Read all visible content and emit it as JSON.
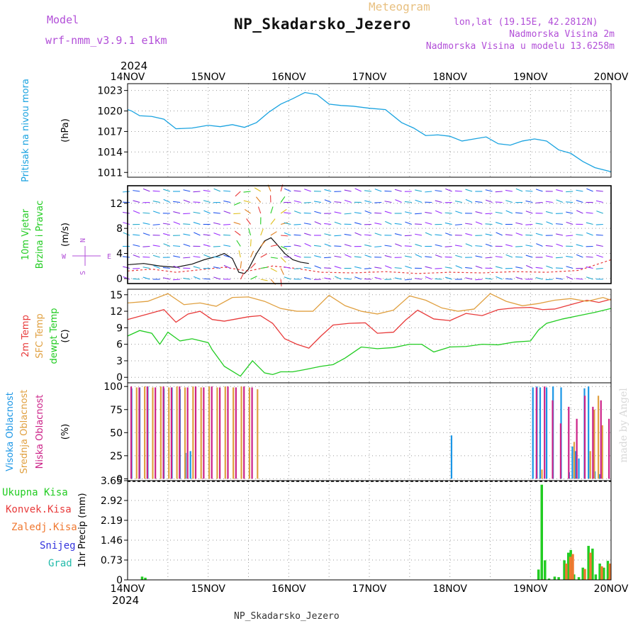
{
  "header": {
    "model_label": "Model",
    "model_name": "wrf-nmm_v3.9.1 e1km",
    "meteogram_label": "Meteogram",
    "station": "NP_Skadarsko_Jezero",
    "lonlat": "lon,lat (19.15E, 42.2812N)",
    "elevation": "Nadmorska Visina 2m",
    "model_elevation": "Nadmorska Visina u modelu 13.6258m",
    "footer_station": "NP_Skadarsko_Jezero",
    "credit": "made by Angel",
    "year": "2024"
  },
  "colors": {
    "pressure": "#1aa3e0",
    "temp2m": "#e83a3a",
    "sfc_temp": "#e0a040",
    "dewpoint": "#22cc22",
    "high_cloud": "#1a96e6",
    "mid_cloud": "#e0a040",
    "low_cloud": "#cc2288",
    "total_precip": "#22cc22",
    "conv_precip": "#e83a3a",
    "frozen_precip": "#f07830",
    "snow": "#3333dd",
    "hail": "#22bbaa"
  },
  "chart_data": {
    "type": "line",
    "x_labels": [
      "14NOV",
      "15NOV",
      "16NOV",
      "17NOV",
      "18NOV",
      "19NOV",
      "20NOV"
    ],
    "panels": [
      {
        "id": "pressure",
        "ylabel": [
          "Pritisak na nivou mora",
          "(hPa)"
        ],
        "yticks": [
          1011,
          1014,
          1017,
          1020,
          1023
        ],
        "ylim": [
          1010.3,
          1024.0
        ],
        "series": [
          {
            "name": "Pritisak na nivou mora",
            "x": [
              0,
              0.05,
              0.15,
              0.3,
              0.45,
              0.6,
              0.8,
              1.0,
              1.15,
              1.3,
              1.45,
              1.6,
              1.75,
              1.9,
              2.05,
              2.2,
              2.35,
              2.5,
              2.65,
              2.8,
              3.0,
              3.2,
              3.4,
              3.55,
              3.7,
              3.85,
              4.0,
              4.15,
              4.3,
              4.45,
              4.6,
              4.75,
              4.9,
              5.05,
              5.2,
              5.35,
              5.5,
              5.65,
              5.8,
              6.0
            ],
            "y": [
              1020.2,
              1020.0,
              1019.3,
              1019.2,
              1018.8,
              1017.4,
              1017.5,
              1017.9,
              1017.7,
              1018.0,
              1017.6,
              1018.3,
              1019.8,
              1021.0,
              1021.8,
              1022.7,
              1022.4,
              1021.0,
              1020.8,
              1020.7,
              1020.4,
              1020.2,
              1018.3,
              1017.5,
              1016.4,
              1016.5,
              1016.3,
              1015.6,
              1015.9,
              1016.2,
              1015.2,
              1015.0,
              1015.6,
              1015.9,
              1015.6,
              1014.3,
              1013.8,
              1012.6,
              1011.7,
              1011.1
            ]
          }
        ]
      },
      {
        "id": "wind",
        "ylabel": [
          "10m Vjetar",
          "Brzina i Pravac",
          "(m/s)"
        ],
        "yticks": [
          0,
          4,
          8,
          12
        ],
        "ylim": [
          -0.8,
          14.8
        ],
        "compass": {
          "north": "N",
          "south": "S",
          "west": "W",
          "east": "E"
        },
        "series": [
          {
            "name": "speed",
            "x": [
              0,
              0.2,
              0.4,
              0.6,
              0.8,
              0.95,
              1.1,
              1.2,
              1.3,
              1.38,
              1.45,
              1.5,
              1.6,
              1.7,
              1.78,
              1.85,
              1.95,
              2.05,
              2.15,
              2.25
            ],
            "y": [
              2.2,
              2.4,
              2.0,
              1.8,
              2.3,
              3.0,
              3.5,
              4.0,
              3.2,
              1.0,
              0.8,
              1.5,
              4.0,
              6.0,
              6.5,
              5.5,
              4.0,
              3.0,
              2.6,
              2.4
            ]
          },
          {
            "name": "gust",
            "x": [
              0,
              0.3,
              0.6,
              0.9,
              1.2,
              1.5,
              1.8,
              2.1,
              2.4,
              2.8,
              3.2,
              3.6,
              4.0,
              4.4,
              4.8,
              5.2,
              5.6,
              6.0
            ],
            "y": [
              1.2,
              1.5,
              1.0,
              1.4,
              1.8,
              1.2,
              2.0,
              1.6,
              1.0,
              0.9,
              1.1,
              0.8,
              1.0,
              0.9,
              1.1,
              1.0,
              1.3,
              3.0
            ]
          }
        ]
      },
      {
        "id": "temperature",
        "ylabel": [
          "2m Temp",
          "SFC Temp",
          "dewpt Temp",
          "(C)"
        ],
        "yticks": [
          0,
          3,
          6,
          9,
          12,
          15
        ],
        "ylim": [
          -1.0,
          16.0
        ],
        "series": [
          {
            "name": "2m Temp",
            "x": [
              0,
              0.25,
              0.45,
              0.6,
              0.75,
              0.9,
              1.05,
              1.2,
              1.35,
              1.5,
              1.65,
              1.8,
              1.95,
              2.1,
              2.25,
              2.4,
              2.55,
              2.75,
              2.95,
              3.1,
              3.3,
              3.45,
              3.6,
              3.8,
              4.0,
              4.2,
              4.4,
              4.6,
              4.8,
              5.0,
              5.15,
              5.3,
              5.5,
              5.7,
              5.85,
              6.0
            ],
            "y": [
              10.5,
              11.5,
              12.3,
              10.0,
              11.5,
              12.0,
              10.5,
              10.2,
              10.6,
              11.0,
              11.2,
              9.8,
              7.0,
              6.0,
              5.3,
              7.5,
              9.5,
              9.8,
              9.9,
              8.0,
              8.2,
              10.4,
              12.2,
              10.6,
              10.3,
              11.6,
              11.2,
              12.3,
              12.6,
              12.7,
              12.3,
              12.4,
              13.2,
              14.0,
              13.6,
              14.2
            ]
          },
          {
            "name": "SFC Temp",
            "x": [
              0,
              0.25,
              0.5,
              0.7,
              0.9,
              1.1,
              1.3,
              1.5,
              1.7,
              1.9,
              2.1,
              2.3,
              2.5,
              2.7,
              2.9,
              3.1,
              3.3,
              3.5,
              3.7,
              3.9,
              4.1,
              4.3,
              4.5,
              4.7,
              4.9,
              5.1,
              5.3,
              5.5,
              5.7,
              5.9,
              6.0
            ],
            "y": [
              13.5,
              13.8,
              15.2,
              13.2,
              13.5,
              12.9,
              14.5,
              14.6,
              13.8,
              12.5,
              12.0,
              12.0,
              14.9,
              13.0,
              12.0,
              11.5,
              12.2,
              14.8,
              14.0,
              12.6,
              12.0,
              12.4,
              15.2,
              13.8,
              13.0,
              13.4,
              14.0,
              14.3,
              13.8,
              14.5,
              14.0
            ]
          },
          {
            "name": "dewpt Temp",
            "x": [
              0,
              0.15,
              0.3,
              0.4,
              0.5,
              0.65,
              0.8,
              1.0,
              1.05,
              1.2,
              1.4,
              1.55,
              1.7,
              1.8,
              1.9,
              2.05,
              2.2,
              2.4,
              2.55,
              2.7,
              2.9,
              3.1,
              3.3,
              3.5,
              3.65,
              3.8,
              4.0,
              4.2,
              4.4,
              4.6,
              4.8,
              5.0,
              5.1,
              5.2,
              5.4,
              5.6,
              5.8,
              6.0
            ],
            "y": [
              7.5,
              8.5,
              8.0,
              6.0,
              8.2,
              6.6,
              7.0,
              6.3,
              5.0,
              2.0,
              0.2,
              3.0,
              0.8,
              0.5,
              1.0,
              1.0,
              1.4,
              2.0,
              2.3,
              3.5,
              5.5,
              5.2,
              5.4,
              6.0,
              6.0,
              4.6,
              5.5,
              5.6,
              6.0,
              5.9,
              6.4,
              6.6,
              8.6,
              9.8,
              10.6,
              11.2,
              11.8,
              12.5
            ]
          }
        ]
      },
      {
        "id": "clouds",
        "ylabel": [
          "Visoka Oblacnost",
          "Srednja Oblacnost",
          "Niska Oblacnost",
          "(%)"
        ],
        "yticks": [
          0,
          25,
          50,
          75,
          100
        ],
        "ylim": [
          -2,
          104
        ],
        "series": [
          {
            "name": "Visoka Oblacnost",
            "type": "bar",
            "x": [
              0.05,
              0.15,
              0.25,
              0.45,
              0.55,
              0.65,
              0.72,
              0.78,
              4.02,
              5.03,
              5.08,
              5.12,
              5.2,
              5.28,
              5.38,
              5.48,
              5.52,
              5.56,
              5.6,
              5.67,
              5.72,
              5.8,
              5.86
            ],
            "values": [
              98,
              99,
              100,
              98,
              99,
              97,
              28,
              30,
              47,
              99,
              100,
              99,
              99,
              100,
              99,
              7,
              35,
              30,
              22,
              98,
              100,
              8,
              5
            ]
          },
          {
            "name": "Srednja Oblacnost",
            "type": "bar",
            "x": [
              0.1,
              0.2,
              0.3,
              0.4,
              0.5,
              0.6,
              0.7,
              0.8,
              0.9,
              1.0,
              1.1,
              1.2,
              1.3,
              1.4,
              1.5,
              1.6,
              5.13,
              5.53,
              5.73,
              5.78,
              5.83,
              5.88
            ],
            "values": [
              99,
              100,
              99,
              100,
              99,
              100,
              99,
              100,
              99,
              100,
              99,
              100,
              99,
              100,
              99,
              97,
              10,
              40,
              30,
              75,
              90,
              58
            ]
          },
          {
            "name": "Niska Oblacnost",
            "type": "bar",
            "x": [
              0.02,
              0.12,
              0.22,
              0.32,
              0.42,
              0.52,
              0.62,
              0.72,
              0.82,
              0.92,
              1.02,
              1.12,
              1.22,
              1.32,
              1.42,
              1.52,
              5.05,
              5.15,
              5.25,
              5.35,
              5.45,
              5.55,
              5.65,
              5.75,
              5.85,
              5.95
            ],
            "values": [
              100,
              99,
              100,
              99,
              100,
              99,
              100,
              99,
              100,
              99,
              100,
              99,
              100,
              99,
              100,
              99,
              99,
              100,
              85,
              60,
              78,
              65,
              90,
              78,
              85,
              65
            ]
          }
        ]
      },
      {
        "id": "precip",
        "ylabel": [
          "1hr Precip (mm)"
        ],
        "yticks": [
          "0",
          "0.73",
          "1.46",
          "2.19",
          "2.92",
          "3.65"
        ],
        "ylim": [
          0,
          3.65
        ],
        "legend": [
          "Ukupna Kisa",
          "Konvek.Kisa",
          "Zaledj.Kisa",
          "Snijeg",
          "Grad"
        ],
        "series": [
          {
            "name": "Ukupna Kisa",
            "type": "bar",
            "x": [
              0.18,
              0.22,
              5.1,
              5.14,
              5.18,
              5.23,
              5.3,
              5.35,
              5.42,
              5.47,
              5.5,
              5.54,
              5.6,
              5.65,
              5.72,
              5.77,
              5.81,
              5.86,
              5.91,
              5.96
            ],
            "values": [
              0.12,
              0.08,
              0.38,
              3.5,
              0.72,
              0.05,
              0.12,
              0.1,
              0.72,
              1.0,
              1.1,
              0.2,
              0.1,
              0.45,
              1.25,
              1.15,
              0.2,
              0.6,
              0.45,
              0.7
            ]
          },
          {
            "name": "Konvek.Kisa",
            "type": "bar",
            "x": [
              5.14,
              5.47,
              5.72,
              5.96
            ],
            "values": [
              0.02,
              0.03,
              0.05,
              0.05
            ]
          },
          {
            "name": "Zaledj.Kisa",
            "type": "bar",
            "x": [
              5.42,
              5.47,
              5.5,
              5.65,
              5.72,
              5.86,
              5.96
            ],
            "values": [
              0.6,
              0.85,
              0.95,
              0.4,
              1.0,
              0.5,
              0.6
            ]
          }
        ]
      }
    ]
  }
}
